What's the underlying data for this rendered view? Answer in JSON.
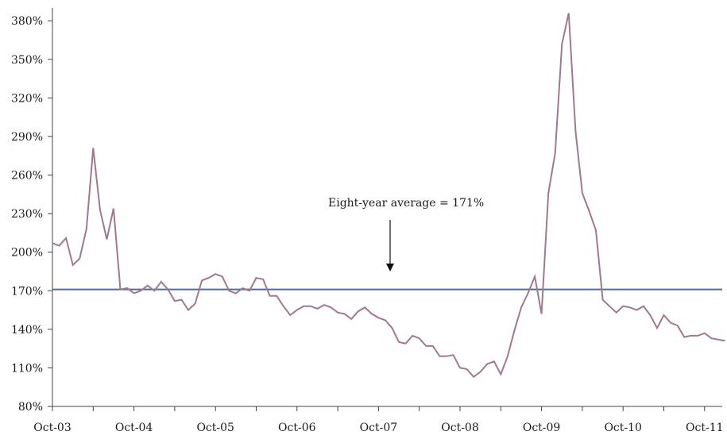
{
  "chart_data": {
    "type": "line",
    "title": "",
    "xlabel": "",
    "ylabel": "",
    "ylim": [
      80,
      390
    ],
    "yticks": [
      80,
      110,
      140,
      170,
      200,
      230,
      260,
      290,
      320,
      350,
      380
    ],
    "ytick_labels": [
      "80%",
      "110%",
      "140%",
      "170%",
      "200%",
      "230%",
      "260%",
      "290%",
      "320%",
      "350%",
      "380%"
    ],
    "xtick_labels": [
      "Oct-03",
      "Oct-04",
      "Oct-05",
      "Oct-06",
      "Oct-07",
      "Oct-08",
      "Oct-09",
      "Oct-10",
      "Oct-11"
    ],
    "x_start": "Oct-03",
    "x_frequency": "monthly",
    "grid": false,
    "colors": {
      "series": "#a07890",
      "average": "#4a6f9a",
      "axis": "#444444"
    },
    "series": [
      {
        "values": [
          207,
          205,
          211,
          190,
          195,
          218,
          281,
          233,
          210,
          234,
          171,
          172,
          168,
          170,
          174,
          170,
          177,
          171,
          162,
          163,
          155,
          160,
          178,
          180,
          183,
          181,
          170,
          168,
          172,
          170,
          180,
          179,
          166,
          166,
          158,
          151,
          155,
          158,
          158,
          156,
          159,
          157,
          153,
          152,
          148,
          154,
          157,
          152,
          149,
          147,
          141,
          130,
          129,
          135,
          133,
          127,
          127,
          119,
          119,
          120,
          110,
          109,
          103,
          107,
          113,
          115,
          105,
          119,
          139,
          157,
          168,
          181,
          152,
          246,
          277,
          362,
          386,
          294,
          246,
          232,
          217,
          163,
          158,
          153,
          158,
          157,
          155,
          158,
          151,
          141,
          151,
          145,
          143,
          134,
          135,
          135,
          137,
          133,
          132,
          131
        ]
      }
    ],
    "reference_line": {
      "value": 171,
      "label": "Eight-year average = 171%"
    }
  }
}
